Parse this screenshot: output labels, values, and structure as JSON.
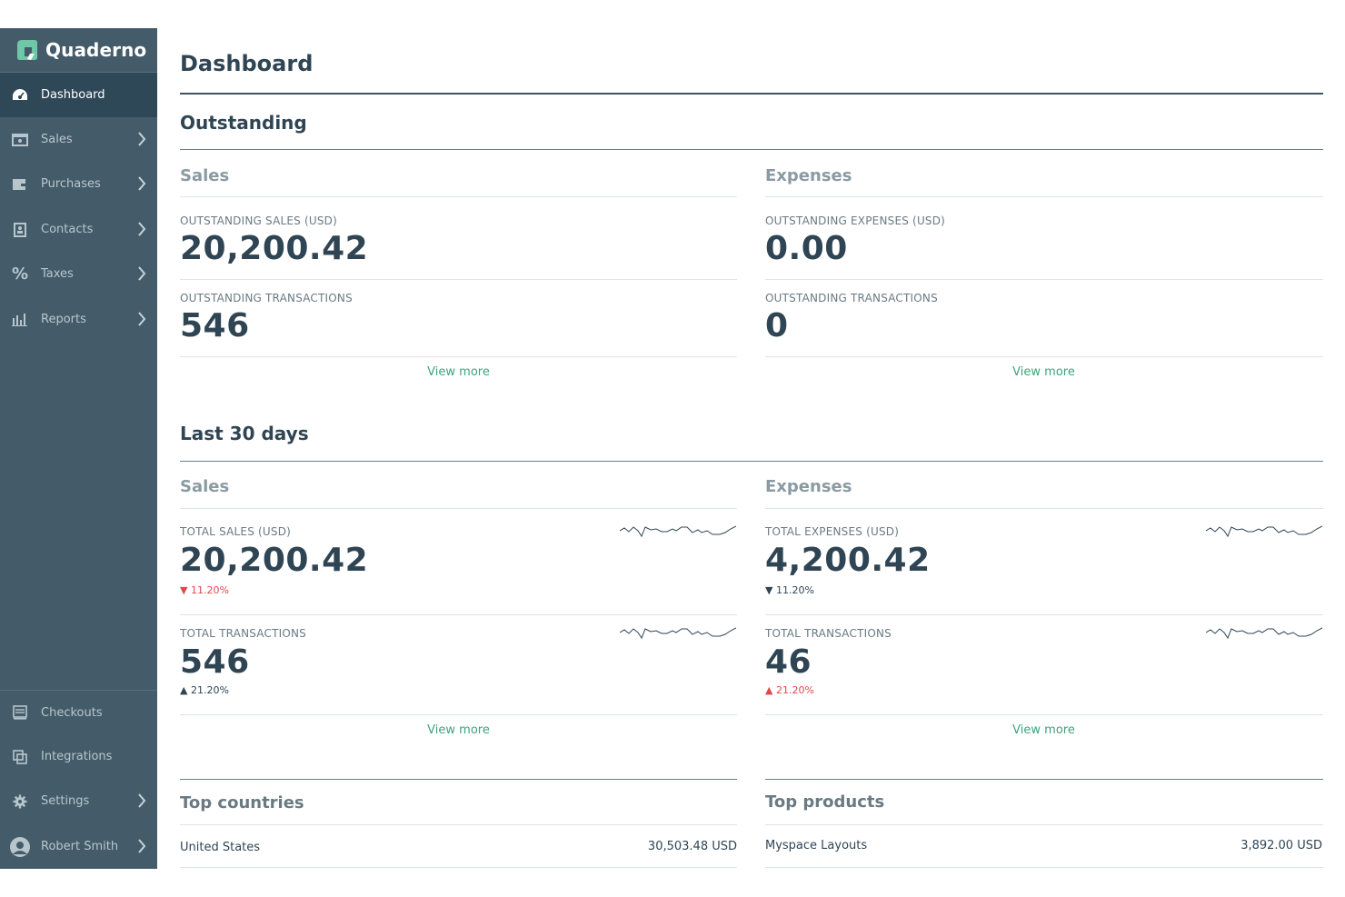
{
  "app": {
    "brand": "Quaderno",
    "colors": {
      "sidebar": "#445c69",
      "sidebar_active": "#2f4858",
      "accent": "#3fa37c",
      "negative": "#e0474c",
      "text": "#2f4554"
    }
  },
  "sidebar": {
    "items": [
      {
        "label": "Dashboard",
        "icon": "dashboard-gauge-icon"
      },
      {
        "label": "Sales",
        "icon": "sales-receipt-icon"
      },
      {
        "label": "Purchases",
        "icon": "purchases-wallet-icon"
      },
      {
        "label": "Contacts",
        "icon": "contacts-card-icon"
      },
      {
        "label": "Taxes",
        "icon": "percent-icon"
      },
      {
        "label": "Reports",
        "icon": "bar-chart-icon"
      }
    ],
    "bottom_items": [
      {
        "label": "Checkouts",
        "icon": "checkout-icon"
      },
      {
        "label": "Integrations",
        "icon": "integrations-icon"
      },
      {
        "label": "Settings",
        "icon": "gear-icon"
      },
      {
        "label": "Robert Smith",
        "icon": "user-avatar-icon"
      }
    ]
  },
  "page": {
    "title": "Dashboard"
  },
  "outstanding": {
    "title": "Outstanding",
    "sales": {
      "title": "Sales",
      "amount_label": "OUTSTANDING SALES (USD)",
      "amount": "20,200.42",
      "transactions_label": "OUTSTANDING TRANSACTIONS",
      "transactions": "546",
      "view_more": "View more"
    },
    "expenses": {
      "title": "Expenses",
      "amount_label": "OUTSTANDING EXPENSES (USD)",
      "amount": "0.00",
      "transactions_label": "OUTSTANDING TRANSACTIONS",
      "transactions": "0",
      "view_more": "View more"
    }
  },
  "last30": {
    "title": "Last 30 days",
    "sales": {
      "title": "Sales",
      "amount_label": "TOTAL SALES (USD)",
      "amount": "20,200.42",
      "amount_delta": "▼ 11.20%",
      "transactions_label": "TOTAL TRANSACTIONS",
      "transactions": "546",
      "transactions_delta": "▲ 21.20%",
      "view_more": "View more"
    },
    "expenses": {
      "title": "Expenses",
      "amount_label": "TOTAL EXPENSES (USD)",
      "amount": "4,200.42",
      "amount_delta": "▼ 11.20%",
      "transactions_label": "TOTAL TRANSACTIONS",
      "transactions": "46",
      "transactions_delta": "▲ 21.20%",
      "view_more": "View more"
    }
  },
  "top_countries": {
    "title": "Top countries",
    "rows": [
      {
        "label": "United States",
        "value": "30,503.48 USD"
      }
    ]
  },
  "top_products": {
    "title": "Top products",
    "rows": [
      {
        "label": "Myspace Layouts",
        "value": "3,892.00 USD"
      }
    ]
  }
}
